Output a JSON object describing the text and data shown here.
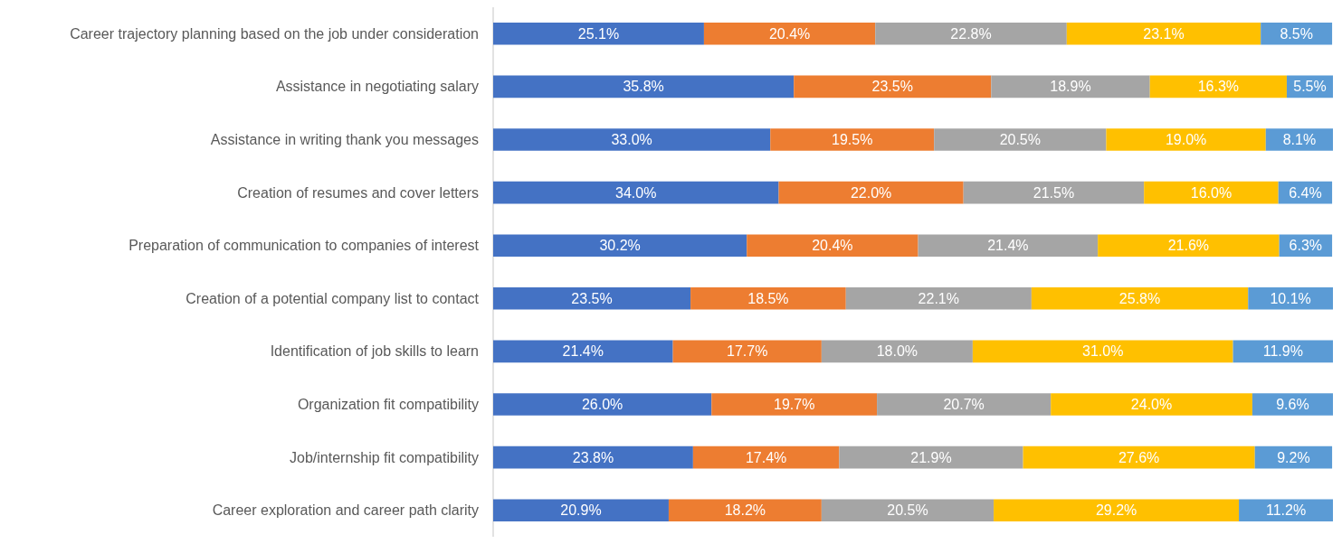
{
  "chart_data": {
    "type": "bar",
    "orientation": "horizontal",
    "stacked": true,
    "xlim": [
      0,
      100
    ],
    "grid": false,
    "categories": [
      "Career trajectory planning based on the job under consideration",
      "Assistance in negotiating salary",
      "Assistance in writing thank you messages",
      "Creation of resumes and cover letters",
      "Preparation of communication to companies of interest",
      "Creation of a potential company list to contact",
      "Identification of job skills to learn",
      "Organization fit compatibility",
      "Job/internship fit compatibility",
      "Career exploration and career path clarity"
    ],
    "series": [
      {
        "color": "#4472c4",
        "values": [
          25.1,
          35.8,
          33.0,
          34.0,
          30.2,
          23.5,
          21.4,
          26.0,
          23.8,
          20.9
        ],
        "value_labels": [
          "25.1%",
          "35.8%",
          "33.0%",
          "34.0%",
          "30.2%",
          "23.5%",
          "21.4%",
          "26.0%",
          "23.8%",
          "20.9%"
        ]
      },
      {
        "color": "#ed7d31",
        "values": [
          20.4,
          23.5,
          19.5,
          22.0,
          20.4,
          18.5,
          17.7,
          19.7,
          17.4,
          18.2
        ],
        "value_labels": [
          "20.4%",
          "23.5%",
          "19.5%",
          "22.0%",
          "20.4%",
          "18.5%",
          "17.7%",
          "19.7%",
          "17.4%",
          "18.2%"
        ]
      },
      {
        "color": "#a5a5a5",
        "values": [
          22.8,
          18.9,
          20.5,
          21.5,
          21.4,
          22.1,
          18.0,
          20.7,
          21.9,
          20.5
        ],
        "value_labels": [
          "22.8%",
          "18.9%",
          "20.5%",
          "21.5%",
          "21.4%",
          "22.1%",
          "18.0%",
          "20.7%",
          "21.9%",
          "20.5%"
        ]
      },
      {
        "color": "#ffc000",
        "values": [
          23.1,
          16.3,
          19.0,
          16.0,
          21.6,
          25.8,
          31.0,
          24.0,
          27.6,
          29.2
        ],
        "value_labels": [
          "23.1%",
          "16.3%",
          "19.0%",
          "16.0%",
          "21.6%",
          "25.8%",
          "31.0%",
          "24.0%",
          "27.6%",
          "29.2%"
        ]
      },
      {
        "color": "#5b9bd5",
        "values": [
          8.5,
          5.5,
          8.1,
          6.4,
          6.3,
          10.1,
          11.9,
          9.6,
          9.2,
          11.2
        ],
        "value_labels": [
          "8.5%",
          "5.5%",
          "8.1%",
          "6.4%",
          "6.3%",
          "10.1%",
          "11.9%",
          "9.6%",
          "9.2%",
          "11.2%"
        ]
      }
    ]
  }
}
